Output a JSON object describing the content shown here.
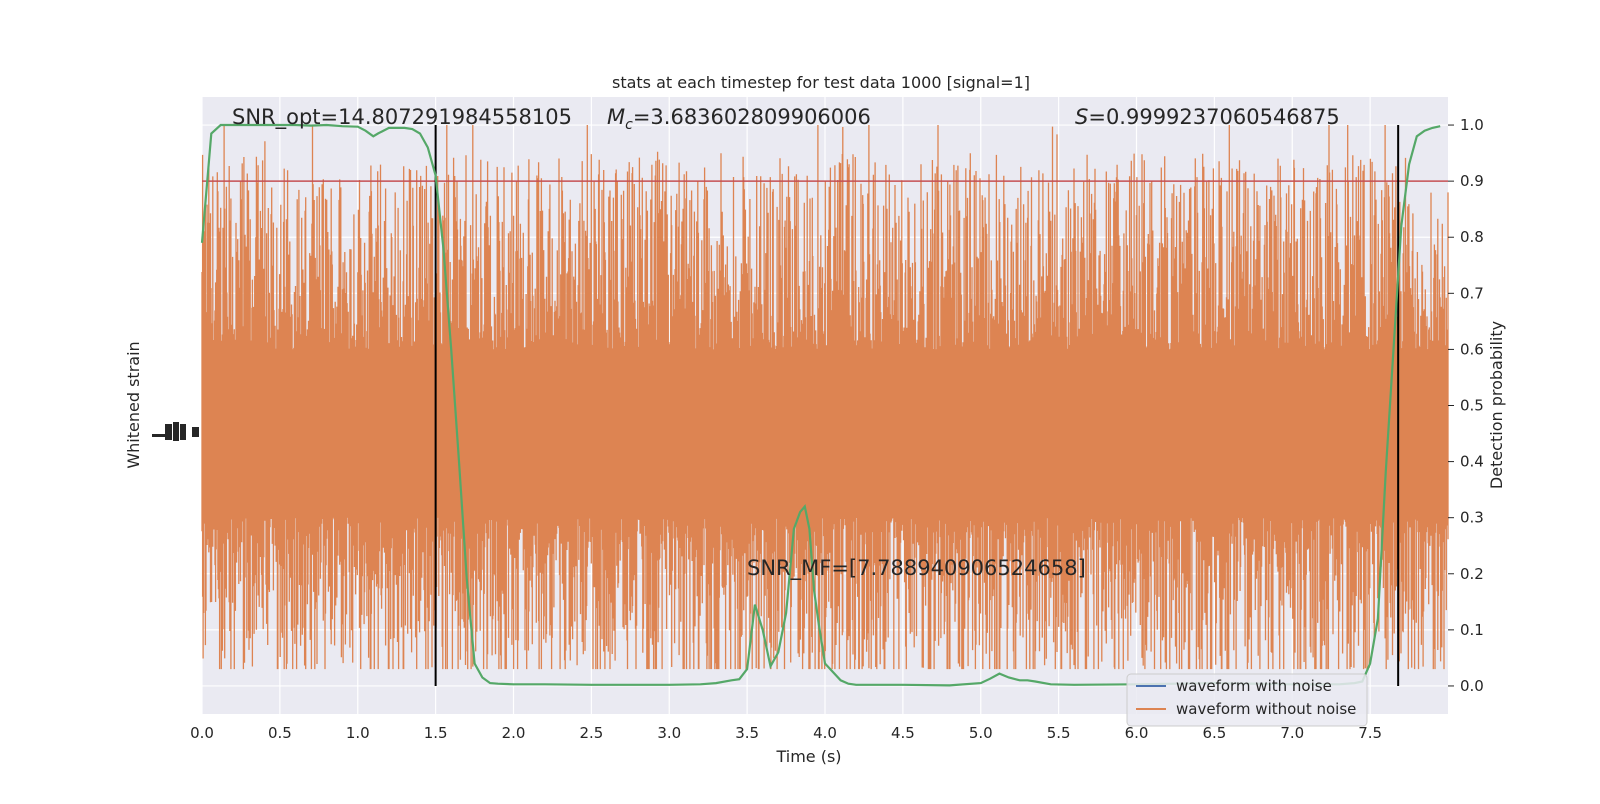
{
  "chart_data": {
    "type": "line",
    "title": "stats at each timestep for test data 1000 [signal=1]",
    "xlabel": "Time (s)",
    "ylabel_left": "Whitened strain",
    "ylabel_right": "Detection probability",
    "xlim": [
      0.0,
      8.0
    ],
    "ylim_right": [
      -0.05,
      1.05
    ],
    "x_ticks": [
      "0.0",
      "0.5",
      "1.0",
      "1.5",
      "2.0",
      "2.5",
      "3.0",
      "3.5",
      "4.0",
      "4.5",
      "5.0",
      "5.5",
      "6.0",
      "6.5",
      "7.0",
      "7.5"
    ],
    "y_ticks_right": [
      "0.0",
      "0.1",
      "0.2",
      "0.3",
      "0.4",
      "0.5",
      "0.6",
      "0.7",
      "0.8",
      "0.9",
      "1.0"
    ],
    "grid": true,
    "annotations": {
      "snr_opt": "SNR_opt=14.807291984558105",
      "mc_prefix": "M",
      "mc_sub": "c",
      "mc_value": "=3.683602809906006",
      "s_prefix": "S",
      "s_value": "=0.9999237060546875",
      "snr_mf": "SNR_MF=[7.788940906524658]"
    },
    "threshold": 0.9,
    "vertical_lines": [
      1.5,
      7.68
    ],
    "legend": {
      "placement": "lower-right",
      "entries": [
        {
          "label": "waveform with noise",
          "color": "#4c72b0"
        },
        {
          "label": "waveform without noise",
          "color": "#dd8452"
        }
      ]
    },
    "series": [
      {
        "name": "waveform with noise",
        "color": "#4c72b0",
        "style": "noise-band"
      },
      {
        "name": "waveform without noise",
        "color": "#dd8452",
        "style": "noise-band",
        "center": 0.45,
        "core_half_width": 0.15,
        "spike_top": 1.0,
        "spike_bottom": 0.03
      },
      {
        "color": "#55a868",
        "x": [
          0.0,
          0.06,
          0.12,
          0.2,
          0.3,
          0.4,
          0.5,
          0.6,
          0.7,
          0.8,
          0.9,
          1.0,
          1.05,
          1.1,
          1.13,
          1.2,
          1.3,
          1.35,
          1.4,
          1.45,
          1.5,
          1.55,
          1.6,
          1.65,
          1.7,
          1.75,
          1.8,
          1.85,
          1.9,
          2.0,
          2.2,
          2.5,
          2.8,
          3.0,
          3.2,
          3.3,
          3.4,
          3.45,
          3.5,
          3.55,
          3.6,
          3.65,
          3.7,
          3.75,
          3.8,
          3.84,
          3.87,
          3.9,
          3.93,
          3.96,
          4.0,
          4.05,
          4.1,
          4.15,
          4.2,
          4.3,
          4.5,
          4.8,
          5.0,
          5.06,
          5.12,
          5.18,
          5.25,
          5.3,
          5.35,
          5.45,
          5.6,
          6.0,
          6.5,
          7.0,
          7.3,
          7.4,
          7.45,
          7.5,
          7.55,
          7.6,
          7.65,
          7.7,
          7.75,
          7.8,
          7.85,
          7.9,
          7.95
        ],
        "y": [
          0.79,
          0.985,
          1.0,
          1.0,
          1.0,
          1.0,
          1.0,
          1.0,
          0.999,
          1.0,
          0.998,
          0.997,
          0.99,
          0.98,
          0.985,
          0.995,
          0.995,
          0.993,
          0.985,
          0.96,
          0.91,
          0.78,
          0.6,
          0.4,
          0.19,
          0.04,
          0.015,
          0.005,
          0.004,
          0.003,
          0.003,
          0.002,
          0.002,
          0.002,
          0.003,
          0.005,
          0.01,
          0.012,
          0.03,
          0.145,
          0.1,
          0.035,
          0.06,
          0.13,
          0.28,
          0.31,
          0.32,
          0.28,
          0.17,
          0.11,
          0.04,
          0.025,
          0.01,
          0.004,
          0.002,
          0.002,
          0.002,
          0.001,
          0.005,
          0.013,
          0.022,
          0.015,
          0.01,
          0.01,
          0.008,
          0.003,
          0.002,
          0.003,
          0.005,
          0.003,
          0.003,
          0.005,
          0.008,
          0.04,
          0.12,
          0.38,
          0.6,
          0.82,
          0.93,
          0.98,
          0.99,
          0.995,
          0.998
        ]
      }
    ]
  }
}
